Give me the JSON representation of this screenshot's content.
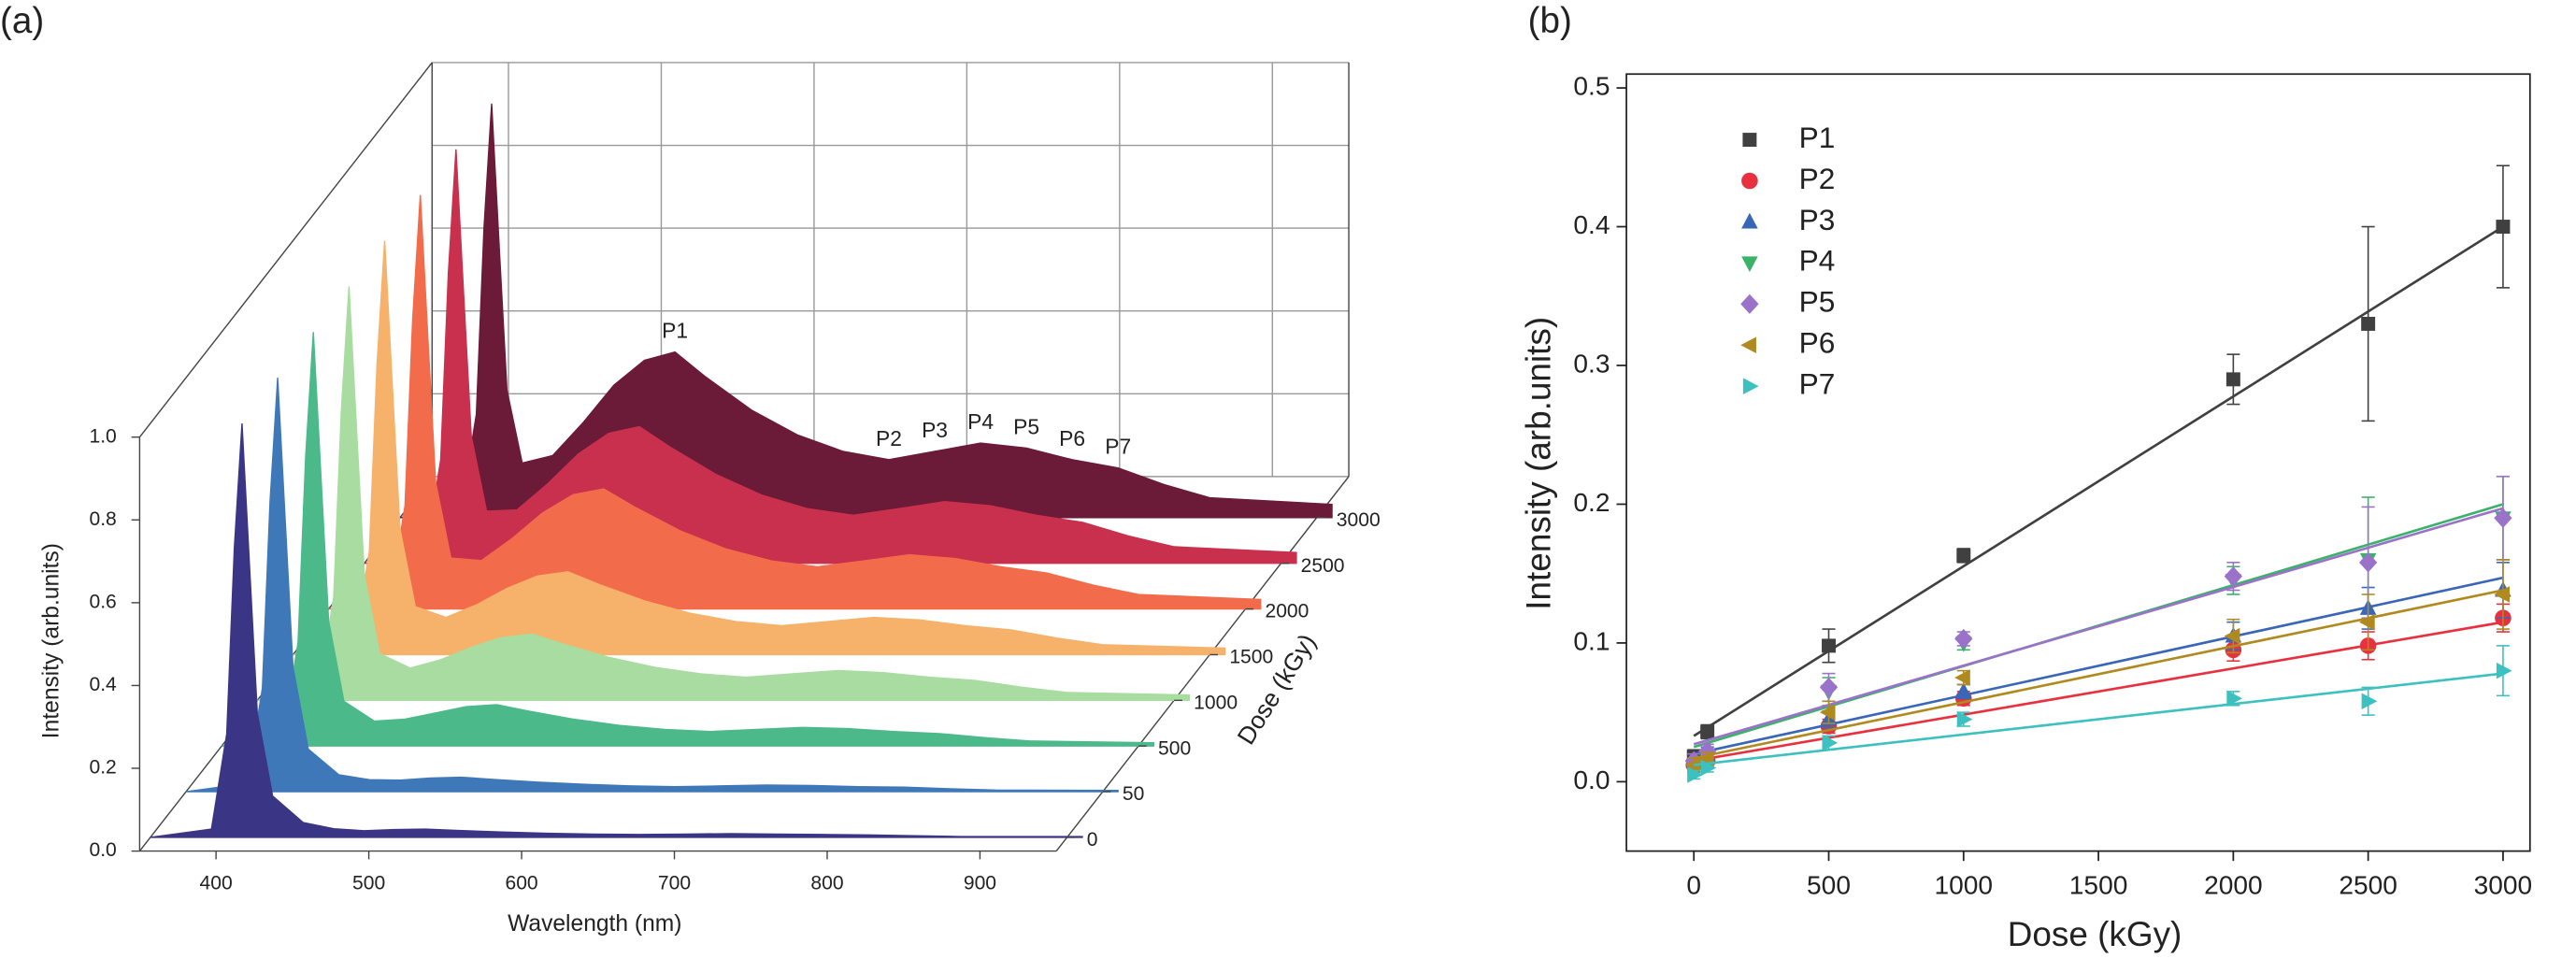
{
  "chart_data": [
    {
      "type": "waterfall",
      "panel_label": "(a)",
      "x_label": "Wavelength (nm)",
      "y_label": "Intensity (arb.units)",
      "depth_label": "Dose (kGy)",
      "x": [
        350,
        390,
        400,
        405,
        410,
        415,
        420,
        430,
        450,
        470,
        490,
        510,
        530,
        550,
        580,
        610,
        640,
        670,
        700,
        730,
        760,
        790,
        820,
        850,
        880,
        960
      ],
      "xlim": [
        350,
        950
      ],
      "xticks": [
        400,
        500,
        600,
        700,
        800,
        900
      ],
      "ylim": [
        0,
        1
      ],
      "yticks": [
        {
          "value": 0,
          "label": "0.0"
        },
        0.2,
        0.4,
        0.6,
        0.8,
        {
          "value": 1,
          "label": "1.0"
        }
      ],
      "series": [
        {
          "name": "0",
          "color": "#3b3585",
          "values": [
            0,
            0.02,
            0.25,
            0.7,
            1.0,
            0.65,
            0.3,
            0.1,
            0.036,
            0.021,
            0.016,
            0.019,
            0.02,
            0.017,
            0.013,
            0.01,
            0.008,
            0.007,
            0.008,
            0.009,
            0.008,
            0.007,
            0.006,
            0.004,
            0.002,
            0.002
          ]
        },
        {
          "name": "50",
          "color": "#3f78b8",
          "values": [
            0,
            0.02,
            0.25,
            0.7,
            1.0,
            0.65,
            0.301,
            0.103,
            0.041,
            0.029,
            0.028,
            0.033,
            0.035,
            0.03,
            0.023,
            0.018,
            0.014,
            0.012,
            0.014,
            0.016,
            0.015,
            0.012,
            0.011,
            0.007,
            0.004,
            0.003
          ]
        },
        {
          "name": "500",
          "color": "#4cb98a",
          "values": [
            0,
            0.02,
            0.25,
            0.7,
            1.0,
            0.65,
            0.302,
            0.108,
            0.06,
            0.065,
            0.08,
            0.095,
            0.1,
            0.085,
            0.065,
            0.05,
            0.04,
            0.035,
            0.04,
            0.045,
            0.042,
            0.035,
            0.03,
            0.02,
            0.012,
            0.008
          ]
        },
        {
          "name": "1000",
          "color": "#a8dca0",
          "values": [
            0,
            0.02,
            0.25,
            0.7,
            1.0,
            0.65,
            0.303,
            0.113,
            0.078,
            0.098,
            0.128,
            0.152,
            0.16,
            0.136,
            0.104,
            0.08,
            0.064,
            0.056,
            0.064,
            0.072,
            0.067,
            0.056,
            0.048,
            0.032,
            0.019,
            0.013
          ]
        },
        {
          "name": "1500",
          "color": "#f6b26b",
          "values": [
            0,
            0.02,
            0.25,
            0.7,
            1.0,
            0.65,
            0.304,
            0.116,
            0.09,
            0.12,
            0.16,
            0.19,
            0.2,
            0.17,
            0.13,
            0.1,
            0.08,
            0.07,
            0.08,
            0.09,
            0.084,
            0.07,
            0.06,
            0.04,
            0.024,
            0.016
          ]
        },
        {
          "name": "2000",
          "color": "#f26b4a",
          "values": [
            0,
            0.02,
            0.25,
            0.7,
            1.0,
            0.65,
            0.306,
            0.123,
            0.117,
            0.17,
            0.232,
            0.276,
            0.29,
            0.247,
            0.189,
            0.145,
            0.116,
            0.102,
            0.116,
            0.131,
            0.122,
            0.102,
            0.087,
            0.058,
            0.035,
            0.023
          ]
        },
        {
          "name": "2500",
          "color": "#c8304e",
          "values": [
            0,
            0.02,
            0.25,
            0.7,
            1.0,
            0.65,
            0.307,
            0.126,
            0.129,
            0.192,
            0.264,
            0.314,
            0.33,
            0.281,
            0.215,
            0.165,
            0.132,
            0.116,
            0.132,
            0.149,
            0.139,
            0.116,
            0.099,
            0.066,
            0.04,
            0.026
          ]
        },
        {
          "name": "3000",
          "color": "#6b1a38",
          "values": [
            0,
            0.02,
            0.25,
            0.7,
            1.0,
            0.65,
            0.308,
            0.132,
            0.15,
            0.23,
            0.32,
            0.38,
            0.4,
            0.34,
            0.26,
            0.2,
            0.16,
            0.14,
            0.16,
            0.18,
            0.168,
            0.14,
            0.12,
            0.08,
            0.048,
            0.032
          ]
        }
      ],
      "annotations": [
        {
          "text": "P1",
          "x": 530
        },
        {
          "text": "P2",
          "x": 670
        },
        {
          "text": "P3",
          "x": 700
        },
        {
          "text": "P4",
          "x": 730
        },
        {
          "text": "P5",
          "x": 760
        },
        {
          "text": "P6",
          "x": 790
        },
        {
          "text": "P7",
          "x": 820
        }
      ]
    },
    {
      "type": "scatter",
      "panel_label": "(b)",
      "x_label": "Dose (kGy)",
      "y_label": "Intensity (arb.units)",
      "x": [
        0,
        50,
        500,
        1000,
        2000,
        2500,
        3000
      ],
      "fit_x": [
        0,
        3000
      ],
      "xlim": [
        -250,
        3100
      ],
      "xticks": [
        0,
        500,
        1000,
        1500,
        2000,
        2500,
        3000
      ],
      "ylim": [
        -0.05,
        0.51
      ],
      "yticks": [
        {
          "value": 0,
          "label": "0.0"
        },
        0.1,
        0.2,
        0.3,
        0.4,
        0.5
      ],
      "legend": "upper left",
      "series": [
        {
          "name": "P1",
          "color": "#404040",
          "marker": "square",
          "values": [
            0.018,
            0.036,
            0.098,
            0.163,
            0.29,
            0.33,
            0.4
          ],
          "errors": [
            0.005,
            0.005,
            0.012,
            0.005,
            0.018,
            0.07,
            0.044
          ],
          "fit": [
            0.033,
            0.4
          ]
        },
        {
          "name": "P2",
          "color": "#e8303e",
          "marker": "circle",
          "values": [
            0.012,
            0.015,
            0.04,
            0.06,
            0.095,
            0.098,
            0.118
          ],
          "errors": [
            0.005,
            0.005,
            0.005,
            0.005,
            0.008,
            0.01,
            0.01
          ],
          "fit": [
            0.015,
            0.115
          ]
        },
        {
          "name": "P3",
          "color": "#3a66b8",
          "marker": "triangle-up",
          "values": [
            0.015,
            0.02,
            0.045,
            0.065,
            0.105,
            0.125,
            0.138
          ],
          "errors": [
            0.005,
            0.005,
            0.006,
            0.005,
            0.01,
            0.015,
            0.02
          ],
          "fit": [
            0.02,
            0.147
          ]
        },
        {
          "name": "P4",
          "color": "#3ab26a",
          "marker": "triangle-down",
          "values": [
            0.01,
            0.018,
            0.065,
            0.1,
            0.145,
            0.16,
            0.19
          ],
          "errors": [
            0.005,
            0.005,
            0.01,
            0.005,
            0.01,
            0.045,
            0.03
          ],
          "fit": [
            0.025,
            0.2
          ]
        },
        {
          "name": "P5",
          "color": "#9b72c9",
          "marker": "diamond",
          "values": [
            0.015,
            0.022,
            0.068,
            0.103,
            0.148,
            0.158,
            0.19
          ],
          "errors": [
            0.005,
            0.005,
            0.01,
            0.005,
            0.01,
            0.04,
            0.03
          ],
          "fit": [
            0.027,
            0.197
          ]
        },
        {
          "name": "P6",
          "color": "#b08a1e",
          "marker": "triangle-left",
          "values": [
            0.012,
            0.016,
            0.05,
            0.075,
            0.105,
            0.115,
            0.135
          ],
          "errors": [
            0.005,
            0.005,
            0.008,
            0.005,
            0.012,
            0.02,
            0.025
          ],
          "fit": [
            0.017,
            0.138
          ]
        },
        {
          "name": "P7",
          "color": "#3cc0c0",
          "marker": "triangle-right",
          "values": [
            0.005,
            0.01,
            0.028,
            0.045,
            0.06,
            0.058,
            0.08
          ],
          "errors": [
            0.003,
            0.003,
            0.005,
            0.005,
            0.005,
            0.01,
            0.018
          ],
          "fit": [
            0.012,
            0.078
          ]
        }
      ]
    }
  ]
}
